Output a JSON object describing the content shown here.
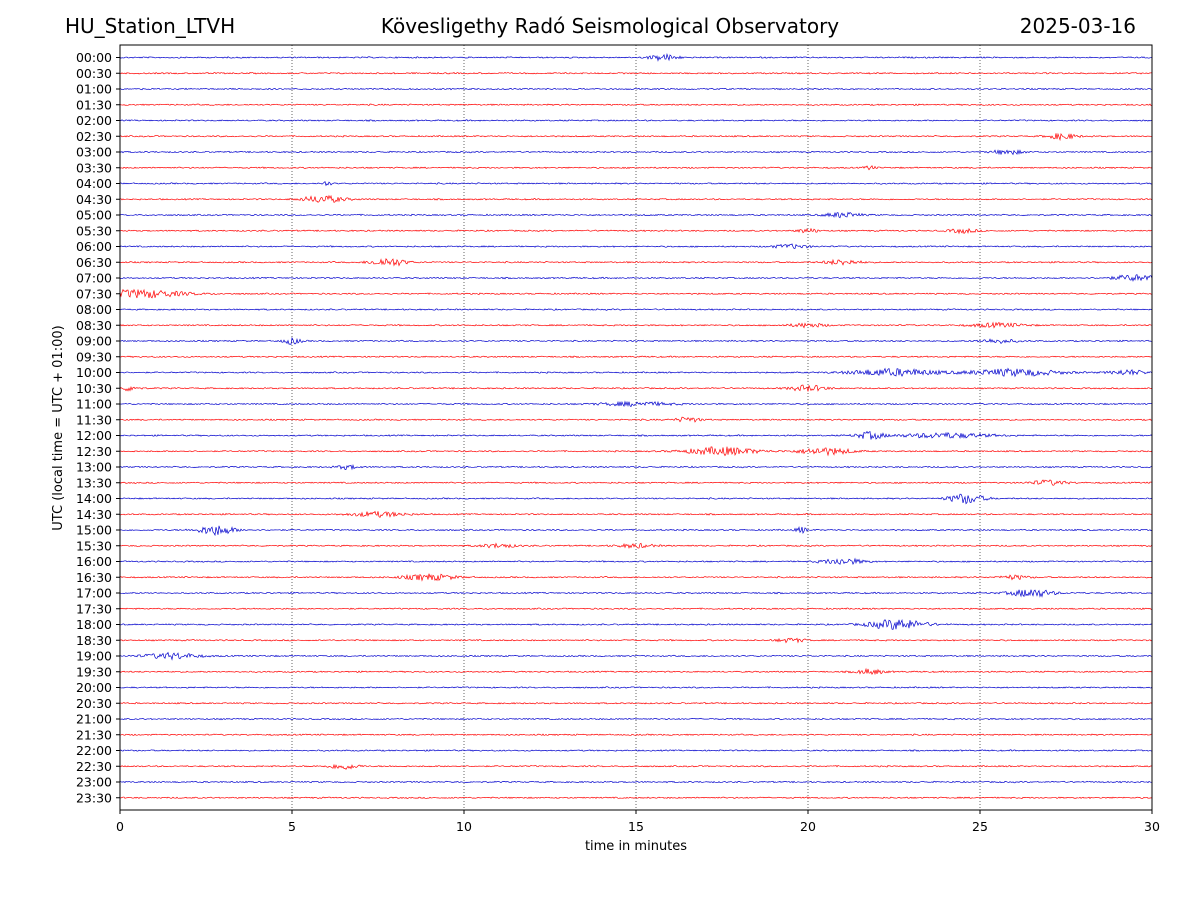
{
  "header": {
    "station": "HU_Station_LTVH",
    "observatory": "Kövesligethy Radó Seismological Observatory",
    "date": "2025-03-16"
  },
  "chart_data": {
    "type": "line",
    "title": "Kövesligethy Radó Seismological Observatory",
    "xlabel": "time in minutes",
    "ylabel": "UTC (local time = UTC + 01:00)",
    "xlim": [
      0,
      30
    ],
    "x_ticks": [
      0,
      5,
      10,
      15,
      20,
      25,
      30
    ],
    "grid": "vertical dotted lines at x ticks",
    "colors": {
      "even_rows": "#0000cc",
      "odd_rows": "#ff0000"
    },
    "rows": [
      {
        "label": "00:00",
        "events": [
          [
            15.8,
            0.8,
            3
          ]
        ]
      },
      {
        "label": "00:30",
        "events": []
      },
      {
        "label": "01:00",
        "events": []
      },
      {
        "label": "01:30",
        "events": []
      },
      {
        "label": "02:00",
        "events": []
      },
      {
        "label": "02:30",
        "events": [
          [
            27.4,
            0.8,
            3
          ]
        ]
      },
      {
        "label": "03:00",
        "events": [
          [
            25.8,
            0.8,
            2.5
          ]
        ]
      },
      {
        "label": "03:30",
        "events": [
          [
            21.8,
            0.3,
            2
          ]
        ]
      },
      {
        "label": "04:00",
        "events": [
          [
            6.0,
            0.3,
            2
          ]
        ]
      },
      {
        "label": "04:30",
        "events": [
          [
            5.9,
            1.2,
            3.5
          ]
        ]
      },
      {
        "label": "05:00",
        "events": [
          [
            21.0,
            1.0,
            2.5
          ]
        ]
      },
      {
        "label": "05:30",
        "events": [
          [
            20.0,
            0.6,
            2
          ],
          [
            24.5,
            0.8,
            2
          ]
        ]
      },
      {
        "label": "06:00",
        "events": [
          [
            19.5,
            1.0,
            2
          ]
        ]
      },
      {
        "label": "06:30",
        "events": [
          [
            7.8,
            1.0,
            4
          ],
          [
            21.0,
            1.0,
            2.5
          ]
        ]
      },
      {
        "label": "07:00",
        "events": [
          [
            29.5,
            1.2,
            3
          ]
        ]
      },
      {
        "label": "07:30",
        "events": [
          [
            0.6,
            2.5,
            4
          ]
        ]
      },
      {
        "label": "08:00",
        "events": []
      },
      {
        "label": "08:30",
        "events": [
          [
            20.0,
            1.0,
            2
          ],
          [
            25.5,
            1.5,
            2
          ]
        ]
      },
      {
        "label": "09:00",
        "events": [
          [
            5.0,
            0.5,
            3
          ],
          [
            25.5,
            1.0,
            2
          ]
        ]
      },
      {
        "label": "09:30",
        "events": []
      },
      {
        "label": "10:00",
        "events": [
          [
            22.5,
            2.5,
            3.5
          ],
          [
            26.0,
            2.5,
            3.5
          ],
          [
            29.3,
            1.0,
            2.5
          ]
        ]
      },
      {
        "label": "10:30",
        "events": [
          [
            0.3,
            0.5,
            2.5
          ],
          [
            20.0,
            1.0,
            3
          ]
        ]
      },
      {
        "label": "11:00",
        "events": [
          [
            15.0,
            2.0,
            2
          ]
        ]
      },
      {
        "label": "11:30",
        "events": [
          [
            16.5,
            0.7,
            2.5
          ]
        ]
      },
      {
        "label": "12:00",
        "events": [
          [
            21.8,
            0.8,
            3.5
          ],
          [
            24.0,
            2.5,
            2.5
          ]
        ]
      },
      {
        "label": "12:30",
        "events": [
          [
            17.5,
            2.0,
            4
          ],
          [
            20.5,
            1.5,
            3.5
          ]
        ]
      },
      {
        "label": "13:00",
        "events": [
          [
            6.6,
            0.6,
            2
          ]
        ]
      },
      {
        "label": "13:30",
        "events": [
          [
            27.0,
            1.0,
            2.5
          ]
        ]
      },
      {
        "label": "14:00",
        "events": [
          [
            24.6,
            1.0,
            5
          ]
        ]
      },
      {
        "label": "14:30",
        "events": [
          [
            7.5,
            1.5,
            2.5
          ]
        ]
      },
      {
        "label": "15:00",
        "events": [
          [
            2.8,
            1.0,
            5
          ],
          [
            19.8,
            0.3,
            3
          ]
        ]
      },
      {
        "label": "15:30",
        "events": [
          [
            11.0,
            1.0,
            2
          ],
          [
            15.0,
            1.0,
            2
          ]
        ]
      },
      {
        "label": "16:00",
        "events": [
          [
            21.0,
            1.2,
            3
          ]
        ]
      },
      {
        "label": "16:30",
        "events": [
          [
            9.0,
            1.5,
            3
          ],
          [
            26.0,
            0.8,
            2
          ]
        ]
      },
      {
        "label": "17:00",
        "events": [
          [
            26.5,
            1.2,
            4
          ]
        ]
      },
      {
        "label": "17:30",
        "events": []
      },
      {
        "label": "18:00",
        "events": [
          [
            22.6,
            1.6,
            5
          ]
        ]
      },
      {
        "label": "18:30",
        "events": [
          [
            19.5,
            0.8,
            2
          ]
        ]
      },
      {
        "label": "19:00",
        "events": [
          [
            1.5,
            1.5,
            3
          ]
        ]
      },
      {
        "label": "19:30",
        "events": [
          [
            21.8,
            0.8,
            2.5
          ]
        ]
      },
      {
        "label": "20:00",
        "events": []
      },
      {
        "label": "20:30",
        "events": []
      },
      {
        "label": "21:00",
        "events": []
      },
      {
        "label": "21:30",
        "events": []
      },
      {
        "label": "22:00",
        "events": []
      },
      {
        "label": "22:30",
        "events": [
          [
            6.5,
            0.8,
            3
          ]
        ]
      },
      {
        "label": "23:00",
        "events": []
      },
      {
        "label": "23:30",
        "events": []
      }
    ]
  }
}
